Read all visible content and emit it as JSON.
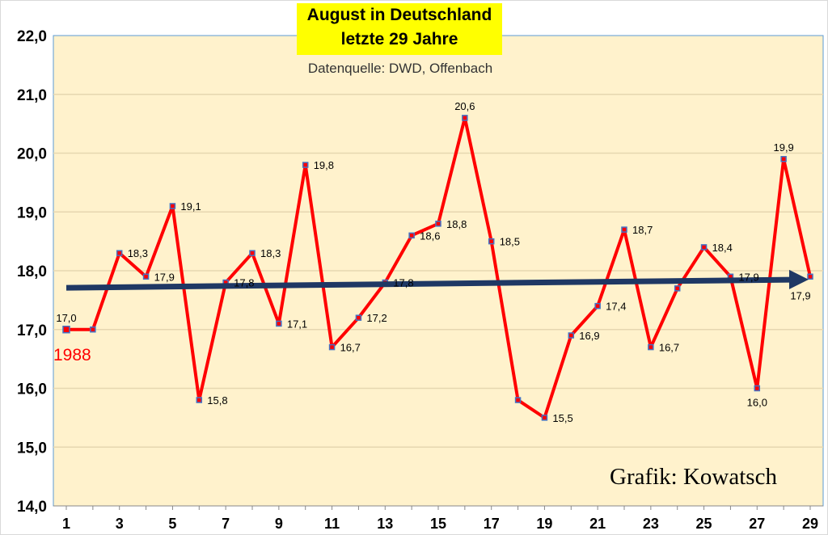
{
  "chart_data": {
    "type": "line",
    "title": [
      "August in Deutschland",
      "letzte 29 Jahre"
    ],
    "subtitle": "Datenquelle: DWD, Offenbach",
    "credit": "Grafik: Kowatsch",
    "start_year_label": "1988",
    "xlabel": "",
    "ylabel": "",
    "x": [
      1,
      2,
      3,
      4,
      5,
      6,
      7,
      8,
      9,
      10,
      11,
      12,
      13,
      14,
      15,
      16,
      17,
      18,
      19,
      20,
      21,
      22,
      23,
      24,
      25,
      26,
      27,
      28,
      29
    ],
    "x_tick_labels": [
      "1",
      "3",
      "5",
      "7",
      "9",
      "11",
      "13",
      "15",
      "17",
      "19",
      "21",
      "23",
      "25",
      "27",
      "29"
    ],
    "y_tick_labels": [
      "14,0",
      "15,0",
      "16,0",
      "17,0",
      "18,0",
      "19,0",
      "20,0",
      "21,0",
      "22,0"
    ],
    "ylim": [
      14,
      22
    ],
    "grid": true,
    "series": [
      {
        "values": [
          17.0,
          17.0,
          18.3,
          17.9,
          19.1,
          15.8,
          17.8,
          18.3,
          17.1,
          19.8,
          16.7,
          17.2,
          17.8,
          18.6,
          18.8,
          20.6,
          18.5,
          15.8,
          15.5,
          16.9,
          17.4,
          18.7,
          16.7,
          17.7,
          18.4,
          17.9,
          16.0,
          19.9,
          17.9
        ],
        "data_labels": [
          "17,0",
          null,
          "18,3",
          "17,9",
          "19,1",
          "15,8",
          "17,8",
          "18,3",
          "17,1",
          "19,8",
          "16,7",
          "17,2",
          "17,8",
          "18,6",
          "18,8",
          "20,6",
          "18,5",
          null,
          "15,5",
          "16,9",
          "17,4",
          "18,7",
          "16,7",
          null,
          "18,4",
          "17,9",
          "16,0",
          "19,9",
          "17,9"
        ],
        "color": "#ff0000",
        "marker_color": "#4472c4"
      }
    ],
    "trend": {
      "start": 17.71,
      "end": 17.85,
      "color": "#1f3864"
    },
    "colors": {
      "plot_background": "#fff2cc",
      "title_background": "#ffff00",
      "year_label": "#ff0000"
    }
  }
}
